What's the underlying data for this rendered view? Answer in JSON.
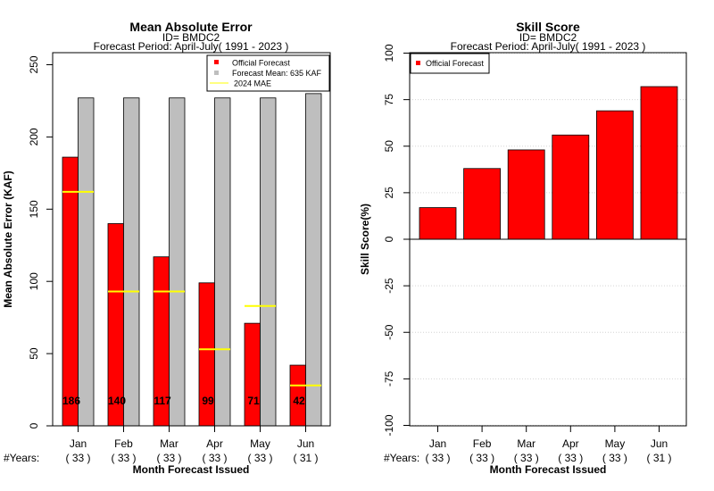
{
  "chart_data": [
    {
      "type": "bar",
      "title": "Mean Absolute Error",
      "subtitle_lines": [
        "ID= BMDC2",
        "Forecast Period: April-July( 1991 - 2023 )"
      ],
      "xlabel": "Month Forecast Issued",
      "ylabel": "Mean Absolute Error (KAF)",
      "ylim": [
        0,
        260
      ],
      "yticks": [
        "0",
        "50",
        "100",
        "150",
        "200",
        "250"
      ],
      "ytick_values": [
        0,
        50,
        100,
        150,
        200,
        250
      ],
      "categories": [
        "Jan",
        "Feb",
        "Mar",
        "Apr",
        "May",
        "Jun"
      ],
      "years_label": "#Years:",
      "years": [
        "( 33 )",
        "( 33 )",
        "( 33 )",
        "( 33 )",
        "( 33 )",
        "( 31 )"
      ],
      "series": [
        {
          "name": "Official Forecast",
          "color": "#ff0000",
          "values": [
            186,
            140,
            117,
            99,
            71,
            42
          ]
        },
        {
          "name": "Forecast Mean: 635 KAF",
          "color": "#bebebe",
          "values": [
            227,
            227,
            227,
            227,
            227,
            230
          ]
        },
        {
          "name": "2024  MAE",
          "color": "#ffff00",
          "values": [
            162,
            93,
            93,
            53,
            83,
            28
          ]
        }
      ],
      "data_labels": [
        "186",
        "140",
        "117",
        "99",
        "71",
        "42"
      ],
      "legend_position": "top-right",
      "grid": false
    },
    {
      "type": "bar",
      "title": "Skill Score",
      "subtitle_lines": [
        "ID= BMDC2",
        "Forecast Period: April-July( 1991 - 2023 )"
      ],
      "xlabel": "Month Forecast Issued",
      "ylabel": "Skill Score(%)",
      "ylim": [
        -100,
        100
      ],
      "yticks": [
        "-100",
        "-75",
        "-50",
        "-25",
        "0",
        "25",
        "50",
        "75",
        "100"
      ],
      "ytick_values": [
        -100,
        -75,
        -50,
        -25,
        0,
        25,
        50,
        75,
        100
      ],
      "categories": [
        "Jan",
        "Feb",
        "Mar",
        "Apr",
        "May",
        "Jun"
      ],
      "years_label": "#Years:",
      "years": [
        "( 33 )",
        "( 33 )",
        "( 33 )",
        "( 33 )",
        "( 33 )",
        "( 31 )"
      ],
      "series": [
        {
          "name": "Official Forecast",
          "color": "#ff0000",
          "values": [
            17,
            38,
            48,
            56,
            69,
            82
          ]
        }
      ],
      "legend_position": "top-left",
      "grid": true
    }
  ]
}
